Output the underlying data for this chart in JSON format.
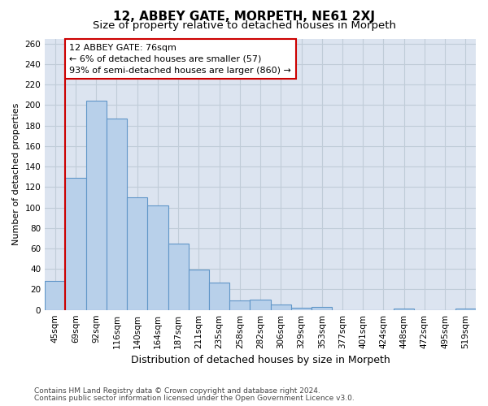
{
  "title": "12, ABBEY GATE, MORPETH, NE61 2XJ",
  "subtitle": "Size of property relative to detached houses in Morpeth",
  "xlabel": "Distribution of detached houses by size in Morpeth",
  "ylabel": "Number of detached properties",
  "categories": [
    "45sqm",
    "69sqm",
    "92sqm",
    "116sqm",
    "140sqm",
    "164sqm",
    "187sqm",
    "211sqm",
    "235sqm",
    "258sqm",
    "282sqm",
    "306sqm",
    "329sqm",
    "353sqm",
    "377sqm",
    "401sqm",
    "424sqm",
    "448sqm",
    "472sqm",
    "495sqm",
    "519sqm"
  ],
  "values": [
    28,
    129,
    204,
    187,
    110,
    102,
    65,
    39,
    27,
    9,
    10,
    5,
    2,
    3,
    0,
    0,
    0,
    1,
    0,
    0,
    1
  ],
  "bar_color": "#b8d0ea",
  "bar_edge_color": "#6096c8",
  "red_line_color": "#cc0000",
  "annotation_text": "12 ABBEY GATE: 76sqm\n← 6% of detached houses are smaller (57)\n93% of semi-detached houses are larger (860) →",
  "annotation_box_color": "white",
  "annotation_box_edge_color": "#cc0000",
  "grid_color": "#c0ccd8",
  "fig_bg_color": "#ffffff",
  "plot_bg_color": "#dce4f0",
  "ylim": [
    0,
    265
  ],
  "yticks": [
    0,
    20,
    40,
    60,
    80,
    100,
    120,
    140,
    160,
    180,
    200,
    220,
    240,
    260
  ],
  "footer1": "Contains HM Land Registry data © Crown copyright and database right 2024.",
  "footer2": "Contains public sector information licensed under the Open Government Licence v3.0.",
  "title_fontsize": 11,
  "subtitle_fontsize": 9.5,
  "xlabel_fontsize": 9,
  "ylabel_fontsize": 8,
  "tick_fontsize": 7.5,
  "footer_fontsize": 6.5,
  "annotation_fontsize": 8
}
